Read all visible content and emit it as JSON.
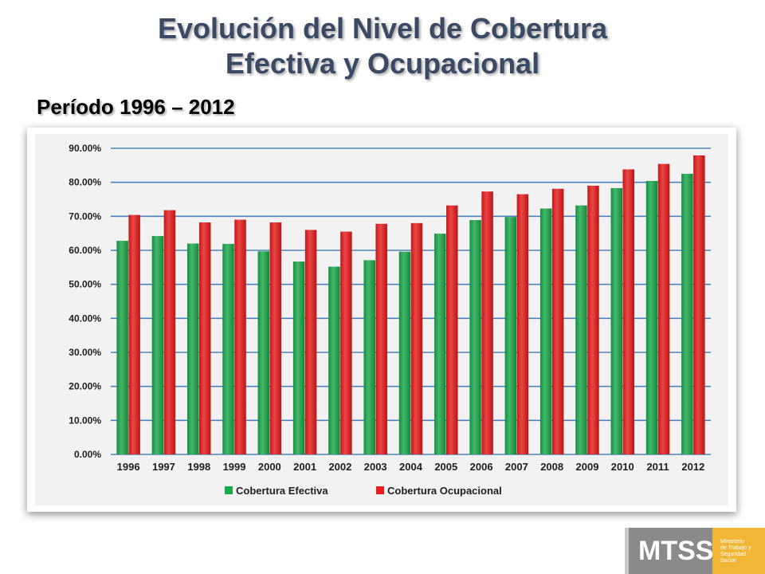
{
  "slide": {
    "title_line1": "Evolución del Nivel de Cobertura",
    "title_line2": "Efectiva y Ocupacional",
    "subtitle": "Período 1996 – 2012"
  },
  "logo": {
    "text": "MTSS",
    "small_lines": [
      "Ministerio",
      "de Trabajo y",
      "Seguridad",
      "Social"
    ],
    "left_color": "#8a8a8a",
    "right_color": "#f2b637"
  },
  "chart_data": {
    "type": "bar",
    "categories": [
      "1996",
      "1997",
      "1998",
      "1999",
      "2000",
      "2001",
      "2002",
      "2003",
      "2004",
      "2005",
      "2006",
      "2007",
      "2008",
      "2009",
      "2010",
      "2011",
      "2012"
    ],
    "series": [
      {
        "name": "Cobertura Efectiva",
        "color": "#1aa84a",
        "values": [
          62.8,
          64.2,
          62.0,
          61.9,
          59.7,
          56.7,
          55.2,
          57.1,
          59.6,
          64.9,
          68.9,
          69.8,
          72.3,
          73.2,
          78.3,
          80.4,
          82.5
        ]
      },
      {
        "name": "Cobertura Ocupacional",
        "color": "#e81c1c",
        "values": [
          70.4,
          71.8,
          68.2,
          69.0,
          68.2,
          66.0,
          65.5,
          67.8,
          68.0,
          73.2,
          77.3,
          76.5,
          78.1,
          79.0,
          83.8,
          85.4,
          87.9
        ]
      }
    ],
    "yticks": [
      "0.00%",
      "10.00%",
      "20.00%",
      "30.00%",
      "40.00%",
      "50.00%",
      "60.00%",
      "70.00%",
      "80.00%",
      "90.00%"
    ],
    "ylim": [
      0,
      90
    ],
    "grid": true,
    "gridline_color": "#4f81bd",
    "legend_position": "bottom",
    "title": "",
    "xlabel": "",
    "ylabel": ""
  }
}
